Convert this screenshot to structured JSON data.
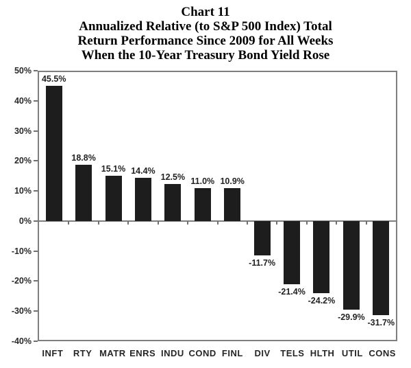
{
  "title": {
    "lines": [
      "Chart 11",
      "Annualized Relative (to S&P 500 Index) Total",
      "Return Performance Since 2009 for All Weeks",
      "When the 10-Year Treasury Bond Yield Rose"
    ]
  },
  "chart_data": {
    "type": "bar",
    "title": "Chart 11: Annualized Relative (to S&P 500 Index) Total Return Performance Since 2009 for All Weeks When the 10-Year Treasury Bond Yield Rose",
    "categories": [
      "INFT",
      "RTY",
      "MATR",
      "ENRS",
      "INDU",
      "COND",
      "FINL",
      "DIV",
      "TELS",
      "HLTH",
      "UTIL",
      "CONS"
    ],
    "values": [
      45.5,
      18.8,
      15.1,
      14.4,
      12.5,
      11.0,
      10.9,
      -11.7,
      -21.4,
      -24.2,
      -29.9,
      -31.7
    ],
    "data_labels": [
      "45.5%",
      "18.8%",
      "15.1%",
      "14.4%",
      "12.5%",
      "11.0%",
      "10.9%",
      "-11.7%",
      "-21.4%",
      "-24.2%",
      "-29.9%",
      "-31.7%"
    ],
    "xlabel": "",
    "ylabel": "",
    "ylim": [
      -40,
      50
    ],
    "y_tick_values": [
      50,
      40,
      30,
      20,
      10,
      0,
      -10,
      -20,
      -30,
      -40
    ],
    "y_tick_labels": [
      "50%",
      "40%",
      "30%",
      "20%",
      "10%",
      "0%",
      "-10%",
      "-20%",
      "-30%",
      "-40%"
    ],
    "grid": false,
    "legend": false,
    "bar_color": "#1d1d1d",
    "axis_color": "#7e7e7e",
    "label_color": "#232323"
  }
}
